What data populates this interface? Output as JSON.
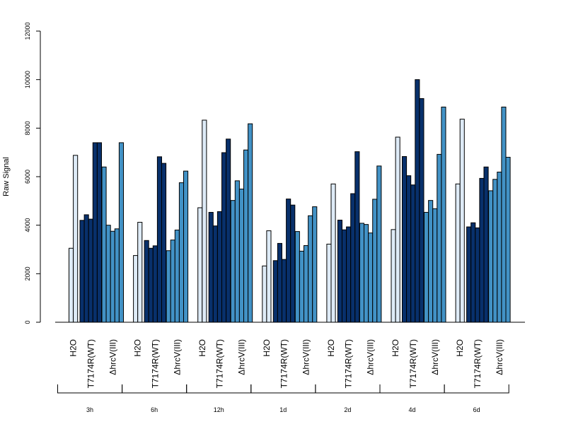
{
  "chart_data": {
    "type": "bar",
    "ylabel": "Raw Signal",
    "ylim": [
      0,
      12000
    ],
    "yticks": [
      "0",
      "2000",
      "4000",
      "6000",
      "8000",
      "10000",
      "12000"
    ],
    "group_labels": [
      "H2O",
      "T7174R(WT)",
      "ΔhrcV(III)"
    ],
    "colors": {
      "H2O": "#deebf7",
      "T7174R(WT)": "#08306b",
      "ΔhrcV(III)": "#4292c6"
    },
    "timepoints": [
      {
        "label": "3h",
        "H2O": [
          3050,
          6880
        ],
        "T7174R(WT)": [
          4200,
          4430,
          4250,
          7400,
          7400
        ],
        "ΔhrcV(III)": [
          6400,
          4000,
          3750,
          3850,
          7400
        ]
      },
      {
        "label": "6h",
        "H2O": [
          2750,
          4120
        ],
        "T7174R(WT)": [
          3370,
          3050,
          3150,
          6820,
          6550
        ],
        "ΔhrcV(III)": [
          2950,
          3390,
          3800,
          5750,
          6230
        ]
      },
      {
        "label": "12h",
        "H2O": [
          4720,
          8330
        ],
        "T7174R(WT)": [
          4530,
          3970,
          4560,
          6990,
          7550
        ],
        "ΔhrcV(III)": [
          5020,
          5830,
          5490,
          7100,
          8180
        ]
      },
      {
        "label": "1d",
        "H2O": [
          2320,
          3770
        ],
        "T7174R(WT)": [
          2540,
          3250,
          2590,
          5080,
          4830
        ],
        "ΔhrcV(III)": [
          3740,
          2930,
          3160,
          4390,
          4760
        ]
      },
      {
        "label": "2d",
        "H2O": [
          3220,
          5700
        ],
        "T7174R(WT)": [
          4210,
          3810,
          3930,
          5300,
          7030
        ],
        "ΔhrcV(III)": [
          4080,
          4030,
          3680,
          5070,
          6440
        ]
      },
      {
        "label": "4d",
        "H2O": [
          3820,
          7630
        ],
        "T7174R(WT)": [
          6830,
          6040,
          5660,
          10000,
          9220
        ],
        "ΔhrcV(III)": [
          4530,
          5020,
          4680,
          6920,
          8870
        ]
      },
      {
        "label": "6d",
        "H2O": [
          5700,
          8370
        ],
        "T7174R(WT)": [
          3930,
          4100,
          3890,
          5930,
          6400
        ],
        "ΔhrcV(III)": [
          5420,
          5890,
          6190,
          8870,
          6800
        ]
      }
    ]
  }
}
